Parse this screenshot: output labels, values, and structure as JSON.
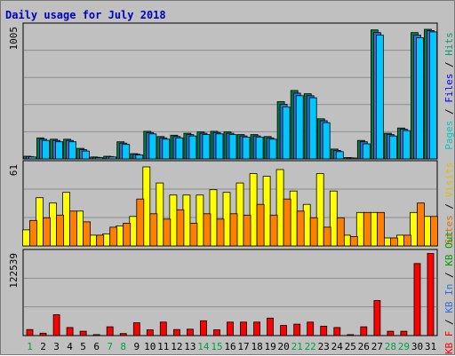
{
  "chart_data": {
    "type": "bar",
    "title": "Daily usage for July 2018",
    "categories": [
      "1",
      "2",
      "3",
      "4",
      "5",
      "6",
      "7",
      "8",
      "9",
      "10",
      "11",
      "12",
      "13",
      "14",
      "15",
      "16",
      "17",
      "18",
      "19",
      "20",
      "21",
      "22",
      "23",
      "24",
      "25",
      "26",
      "27",
      "28",
      "29",
      "30",
      "31"
    ],
    "weekend_days": [
      "1",
      "7",
      "8",
      "14",
      "15",
      "21",
      "22",
      "28",
      "29"
    ],
    "panels": [
      {
        "name": "pages_files_hits",
        "scale_label": "1005",
        "ylim": [
          0,
          1005
        ],
        "axis_labels": [
          {
            "text": "Pages",
            "color": "#00c8c8"
          },
          {
            "text": " / ",
            "color": "#000000"
          },
          {
            "text": "Files",
            "color": "#0000ff"
          },
          {
            "text": " / ",
            "color": "#000000"
          },
          {
            "text": "Hits",
            "color": "#00a070"
          }
        ],
        "series": [
          {
            "name": "Hits",
            "color": "#008040",
            "values": [
              20,
              160,
              150,
              150,
              80,
              15,
              20,
              130,
              40,
              210,
              170,
              180,
              195,
              205,
              210,
              205,
              185,
              185,
              170,
              435,
              520,
              495,
              305,
              75,
              10,
              140,
              980,
              195,
              235,
              960,
              985
            ]
          },
          {
            "name": "Files",
            "color": "#2f6fe0",
            "values": [
              18,
              150,
              140,
              140,
              70,
              12,
              18,
              120,
              35,
              200,
              160,
              170,
              185,
              195,
              200,
              195,
              175,
              175,
              160,
              415,
              500,
              480,
              290,
              65,
              8,
              130,
              960,
              185,
              225,
              940,
              975
            ]
          },
          {
            "name": "Pages",
            "color": "#00c8ff",
            "values": [
              15,
              140,
              130,
              130,
              60,
              10,
              15,
              110,
              30,
              190,
              150,
              160,
              175,
              185,
              190,
              185,
              165,
              165,
              150,
              395,
              480,
              465,
              275,
              55,
              6,
              115,
              940,
              175,
              215,
              920,
              965
            ]
          }
        ]
      },
      {
        "name": "visits_sites",
        "scale_label": "61",
        "ylim": [
          0,
          61
        ],
        "axis_labels": [
          {
            "text": "Sites",
            "color": "#e07000"
          },
          {
            "text": " / ",
            "color": "#000000"
          },
          {
            "text": "Visits",
            "color": "#e0c000"
          }
        ],
        "series": [
          {
            "name": "Visits",
            "color": "#ffff00",
            "values": [
              12,
              36,
              32,
              40,
              26,
              8,
              9,
              15,
              22,
              59,
              47,
              38,
              38,
              38,
              42,
              40,
              47,
              54,
              52,
              57,
              41,
              31,
              54,
              41,
              8,
              25,
              25,
              6,
              8,
              25,
              22
            ]
          },
          {
            "name": "Sites",
            "color": "#ff8000",
            "values": [
              19,
              21,
              23,
              26,
              18,
              8,
              14,
              17,
              35,
              24,
              20,
              27,
              17,
              24,
              20,
              24,
              23,
              31,
              23,
              35,
              26,
              21,
              14,
              21,
              7,
              25,
              25,
              6,
              8,
              32,
              22
            ]
          }
        ]
      },
      {
        "name": "kbytes",
        "scale_label": "122539",
        "ylim": [
          0,
          122539
        ],
        "axis_labels": [
          {
            "text": "KB F",
            "color": "#ff0000"
          },
          {
            "text": " / ",
            "color": "#000000"
          },
          {
            "text": "KB In",
            "color": "#2f6fe0"
          },
          {
            "text": " / ",
            "color": "#000000"
          },
          {
            "text": "KB Out",
            "color": "#00a000"
          }
        ],
        "series": [
          {
            "name": "KB F",
            "color": "#ff0000",
            "values": [
              9000,
              3500,
              31000,
              12000,
              6500,
              1500,
              13000,
              3000,
              19000,
              8500,
              20000,
              9000,
              9500,
              22000,
              8500,
              20000,
              20000,
              20000,
              26000,
              15000,
              17000,
              20000,
              14000,
              12000,
              1500,
              13000,
              52000,
              6500,
              6500,
              107000,
              122000
            ]
          }
        ]
      }
    ]
  }
}
